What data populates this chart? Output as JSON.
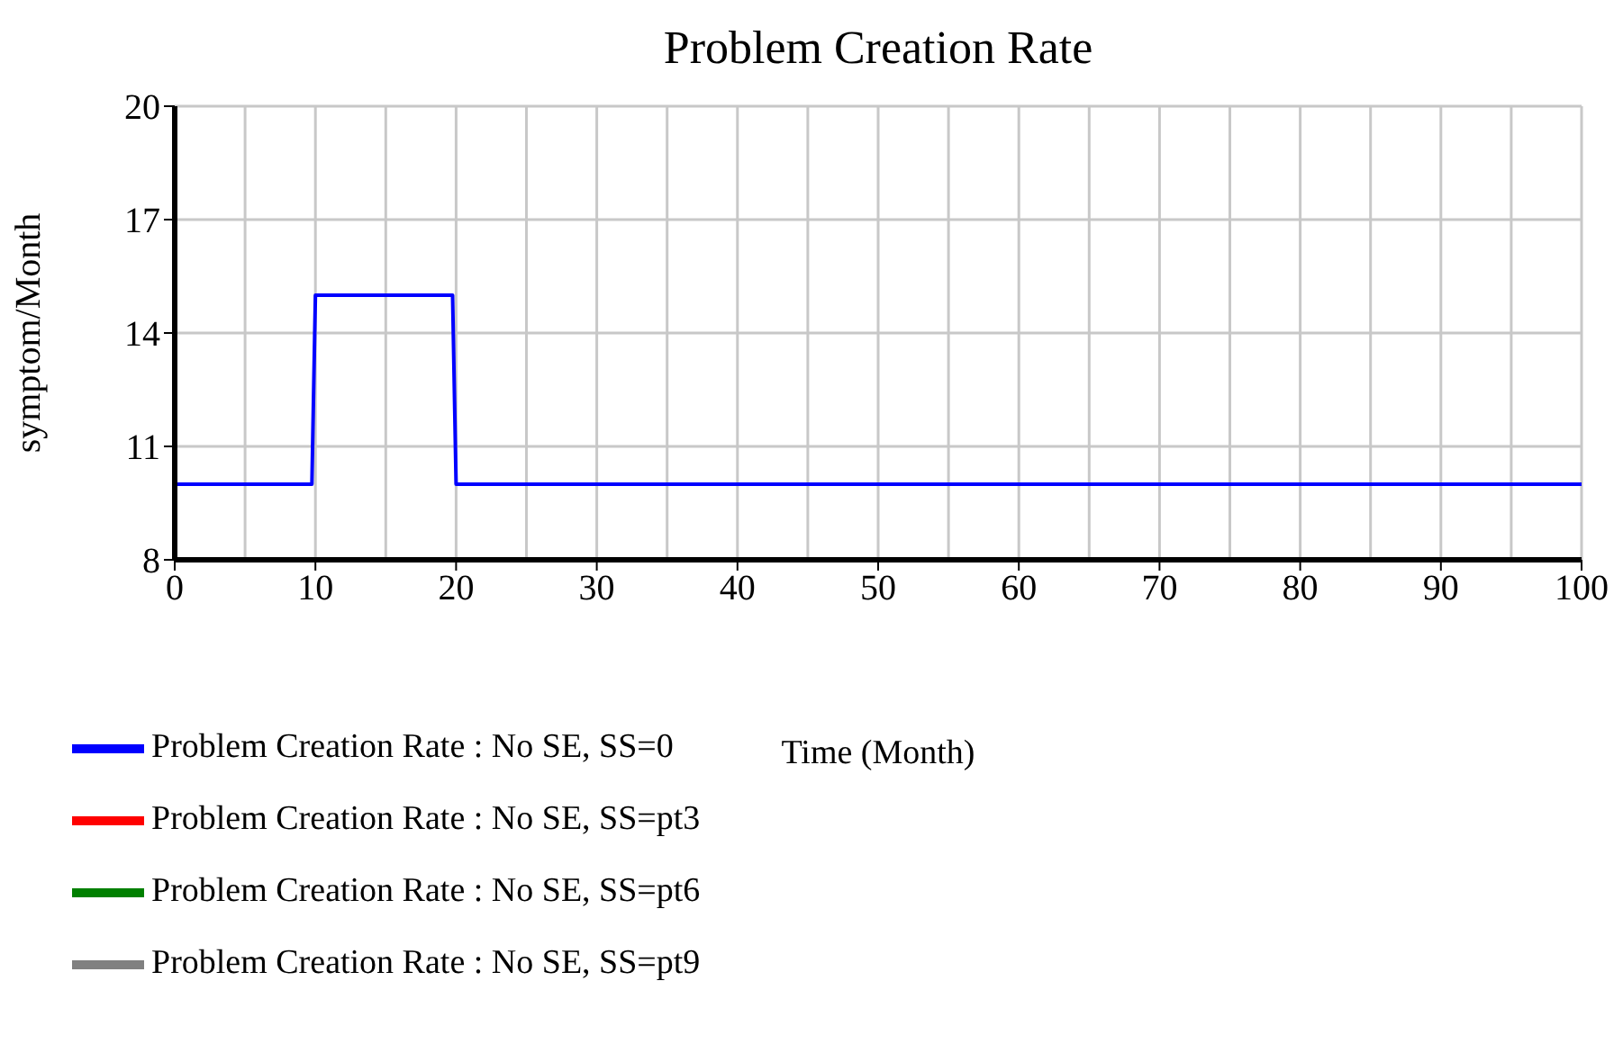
{
  "chart_data": {
    "type": "line",
    "title": "Problem Creation Rate",
    "xlabel": "Time (Month)",
    "ylabel": "symptom/Month",
    "x": [
      0,
      9.75,
      10,
      19.75,
      20,
      100
    ],
    "series": [
      {
        "name": "Problem Creation Rate : No SE, SS=0",
        "color": "#0000ff",
        "values": [
          10,
          10,
          15,
          15,
          10,
          10
        ]
      },
      {
        "name": "Problem Creation Rate : No SE, SS=pt3",
        "color": "#ff0000",
        "values": [
          null,
          null,
          null,
          null,
          null,
          null
        ]
      },
      {
        "name": "Problem Creation Rate : No SE, SS=pt6",
        "color": "#008000",
        "values": [
          null,
          null,
          null,
          null,
          null,
          null
        ]
      },
      {
        "name": "Problem Creation Rate : No SE, SS=pt9",
        "color": "#808080",
        "values": [
          null,
          null,
          null,
          null,
          null,
          null
        ]
      }
    ],
    "xlim": [
      0,
      100
    ],
    "xticks": [
      0,
      10,
      20,
      30,
      40,
      50,
      60,
      70,
      80,
      90,
      100
    ],
    "ylim": [
      8,
      20
    ],
    "yticks": [
      8,
      11,
      14,
      17,
      20
    ],
    "grid": true,
    "legend": "bottom",
    "marker": "none",
    "line_style": "solid"
  }
}
